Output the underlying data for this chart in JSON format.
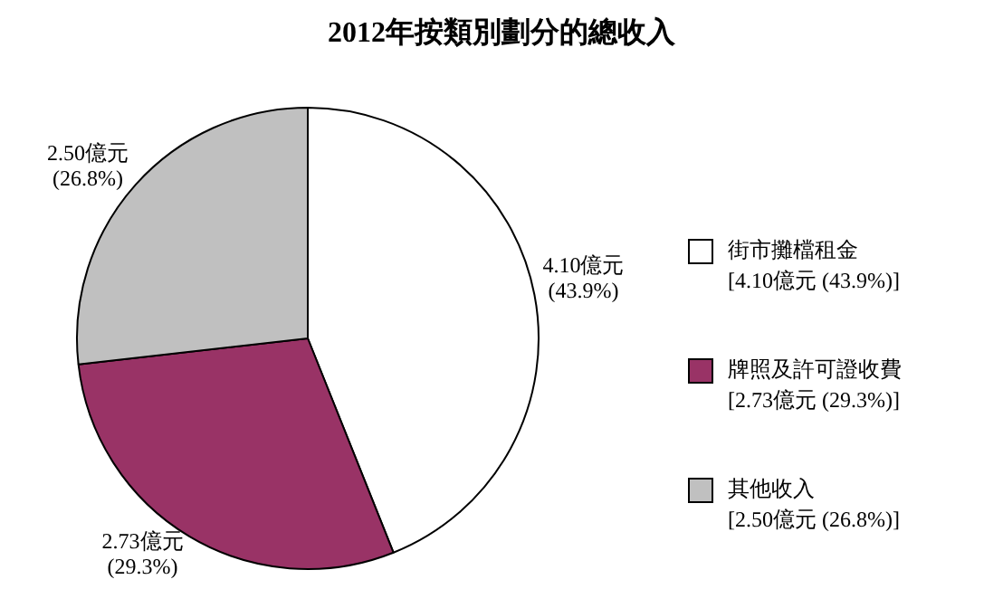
{
  "chart_data": {
    "type": "pie",
    "title": "2012年按類別劃分的總收入",
    "categories": [
      "街市攤檔租金",
      "牌照及許可證收費",
      "其他收入"
    ],
    "values": [
      4.1,
      2.73,
      2.5
    ],
    "colors": [
      "#ffffff",
      "#993366",
      "#c0c0c0"
    ],
    "value_labels": [
      "4.10億元 (43.9%)",
      "2.73億元 (29.3%)",
      "2.50億元 (26.8%)"
    ],
    "annotations": [
      "[4.10億元 (43.9%)]",
      "[2.73億元 (29.3%)]",
      "[2.50億元 (26.8%)]"
    ],
    "legend": "right"
  }
}
